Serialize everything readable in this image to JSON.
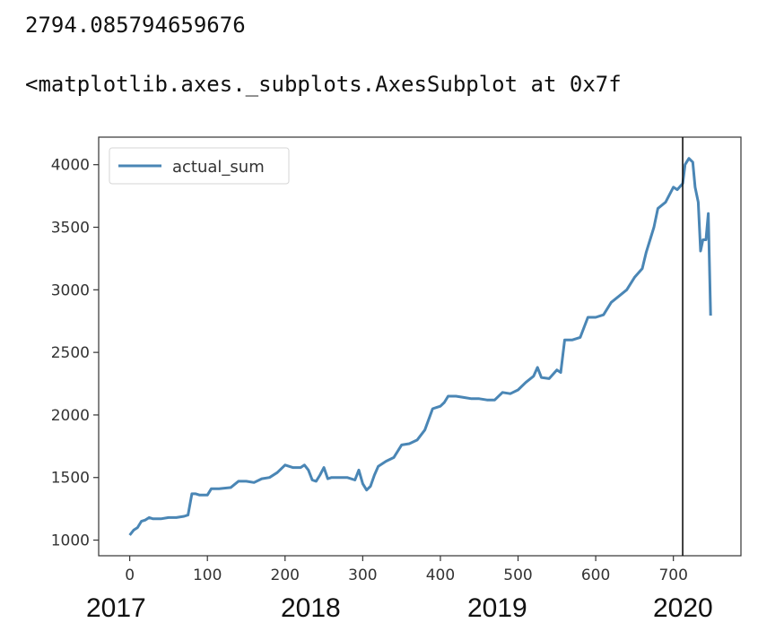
{
  "output": {
    "line1": "2794.085794659676",
    "line2": "<matplotlib.axes._subplots.AxesSubplot at 0x7f"
  },
  "chart_data": {
    "type": "line",
    "title": "",
    "xlabel": "",
    "ylabel": "",
    "xlim": [
      -40,
      787
    ],
    "ylim": [
      875,
      4220
    ],
    "xticks": [
      0,
      100,
      200,
      300,
      400,
      500,
      600,
      700
    ],
    "yticks": [
      1000,
      1500,
      2000,
      2500,
      3000,
      3500,
      4000
    ],
    "grid": false,
    "legend": "upper-left",
    "vline_x": 712,
    "series": [
      {
        "name": "actual_sum",
        "color": "#4a86b5",
        "x": [
          0,
          5,
          10,
          15,
          20,
          25,
          30,
          40,
          50,
          60,
          70,
          75,
          80,
          85,
          90,
          100,
          105,
          115,
          130,
          140,
          150,
          160,
          170,
          180,
          190,
          200,
          210,
          220,
          225,
          230,
          235,
          240,
          245,
          250,
          255,
          260,
          265,
          280,
          290,
          295,
          300,
          305,
          310,
          315,
          320,
          330,
          340,
          350,
          360,
          370,
          380,
          390,
          395,
          400,
          405,
          410,
          420,
          430,
          440,
          450,
          460,
          470,
          480,
          490,
          500,
          510,
          520,
          525,
          530,
          540,
          550,
          555,
          560,
          570,
          580,
          590,
          600,
          610,
          620,
          630,
          640,
          650,
          660,
          665,
          670,
          675,
          680,
          690,
          700,
          705,
          712,
          715,
          720,
          725,
          728,
          732,
          735,
          738,
          742,
          745,
          748
        ],
        "y": [
          1040,
          1080,
          1100,
          1150,
          1160,
          1180,
          1170,
          1170,
          1180,
          1180,
          1190,
          1200,
          1370,
          1370,
          1360,
          1360,
          1410,
          1410,
          1420,
          1470,
          1470,
          1460,
          1490,
          1500,
          1540,
          1600,
          1580,
          1580,
          1600,
          1560,
          1480,
          1470,
          1520,
          1580,
          1490,
          1500,
          1500,
          1500,
          1480,
          1560,
          1450,
          1400,
          1430,
          1520,
          1590,
          1630,
          1660,
          1760,
          1770,
          1800,
          1880,
          2050,
          2060,
          2070,
          2100,
          2150,
          2150,
          2140,
          2130,
          2130,
          2120,
          2120,
          2180,
          2170,
          2200,
          2260,
          2310,
          2380,
          2300,
          2290,
          2360,
          2340,
          2600,
          2600,
          2620,
          2780,
          2780,
          2800,
          2900,
          2950,
          3000,
          3100,
          3170,
          3300,
          3400,
          3500,
          3650,
          3700,
          3820,
          3800,
          3850,
          4000,
          4050,
          4020,
          3820,
          3700,
          3310,
          3400,
          3400,
          3610,
          2794
        ]
      }
    ]
  },
  "annotations": {
    "years": [
      "2017",
      "2018",
      "2019",
      "2020"
    ]
  }
}
